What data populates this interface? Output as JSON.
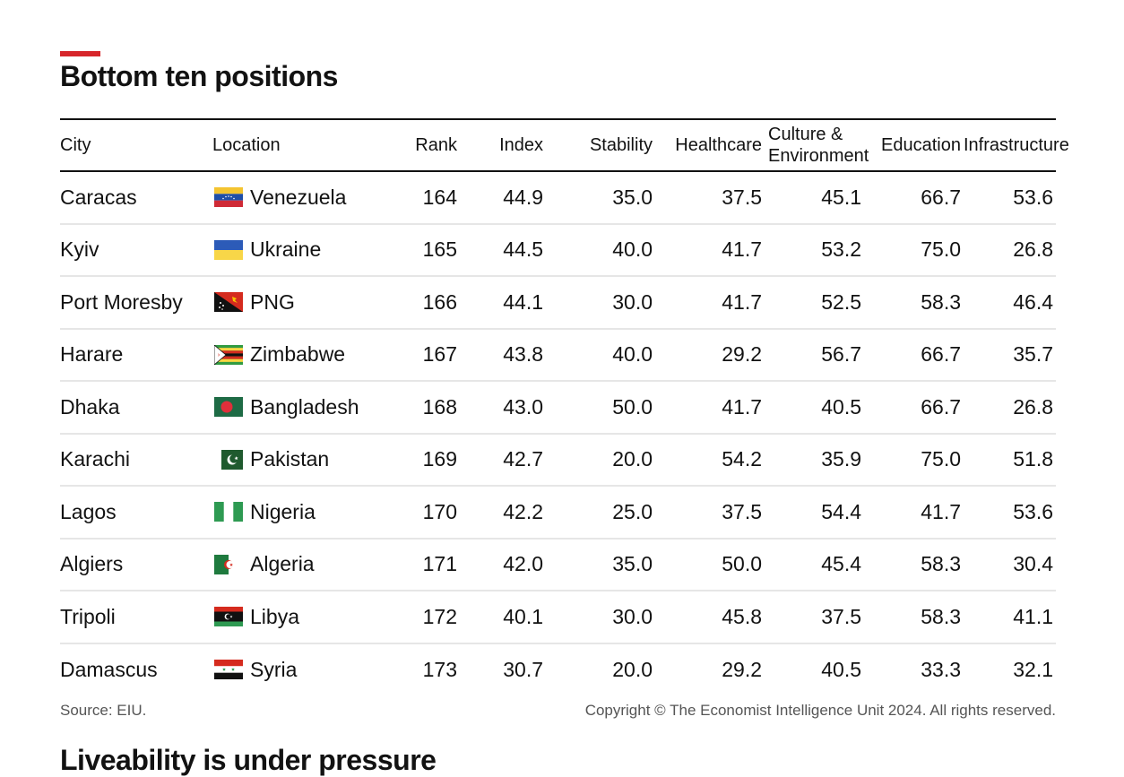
{
  "title": "Bottom ten positions",
  "next_section_title": "Liveability is under pressure",
  "source": "Source: EIU.",
  "copyright": "Copyright © The Economist Intelligence Unit 2024. All rights reserved.",
  "colors": {
    "accent": "#d7262b",
    "text": "#121212",
    "rule": "#e6e6e6"
  },
  "chart_data": {
    "type": "table",
    "columns": [
      "City",
      "Location",
      "Rank",
      "Index",
      "Stability",
      "Healthcare",
      "Culture & Environment",
      "Education",
      "Infrastructure"
    ],
    "column_labels": {
      "city": "City",
      "location": "Location",
      "rank": "Rank",
      "index": "Index",
      "stability": "Stability",
      "healthcare": "Healthcare",
      "culture_1": "Culture &",
      "culture_2": "Environment",
      "education": "Education",
      "infrastructure": "Infrastructure"
    },
    "rows": [
      {
        "city": "Caracas",
        "location": "Venezuela",
        "flag": "venezuela",
        "rank": "164",
        "index": "44.9",
        "stability": "35.0",
        "healthcare": "37.5",
        "culture": "45.1",
        "education": "66.7",
        "infrastructure": "53.6"
      },
      {
        "city": "Kyiv",
        "location": "Ukraine",
        "flag": "ukraine",
        "rank": "165",
        "index": "44.5",
        "stability": "40.0",
        "healthcare": "41.7",
        "culture": "53.2",
        "education": "75.0",
        "infrastructure": "26.8"
      },
      {
        "city": "Port Moresby",
        "location": "PNG",
        "flag": "png",
        "rank": "166",
        "index": "44.1",
        "stability": "30.0",
        "healthcare": "41.7",
        "culture": "52.5",
        "education": "58.3",
        "infrastructure": "46.4"
      },
      {
        "city": "Harare",
        "location": "Zimbabwe",
        "flag": "zimbabwe",
        "rank": "167",
        "index": "43.8",
        "stability": "40.0",
        "healthcare": "29.2",
        "culture": "56.7",
        "education": "66.7",
        "infrastructure": "35.7"
      },
      {
        "city": "Dhaka",
        "location": "Bangladesh",
        "flag": "bangladesh",
        "rank": "168",
        "index": "43.0",
        "stability": "50.0",
        "healthcare": "41.7",
        "culture": "40.5",
        "education": "66.7",
        "infrastructure": "26.8"
      },
      {
        "city": "Karachi",
        "location": "Pakistan",
        "flag": "pakistan",
        "rank": "169",
        "index": "42.7",
        "stability": "20.0",
        "healthcare": "54.2",
        "culture": "35.9",
        "education": "75.0",
        "infrastructure": "51.8"
      },
      {
        "city": "Lagos",
        "location": "Nigeria",
        "flag": "nigeria",
        "rank": "170",
        "index": "42.2",
        "stability": "25.0",
        "healthcare": "37.5",
        "culture": "54.4",
        "education": "41.7",
        "infrastructure": "53.6"
      },
      {
        "city": "Algiers",
        "location": "Algeria",
        "flag": "algeria",
        "rank": "171",
        "index": "42.0",
        "stability": "35.0",
        "healthcare": "50.0",
        "culture": "45.4",
        "education": "58.3",
        "infrastructure": "30.4"
      },
      {
        "city": "Tripoli",
        "location": "Libya",
        "flag": "libya",
        "rank": "172",
        "index": "40.1",
        "stability": "30.0",
        "healthcare": "45.8",
        "culture": "37.5",
        "education": "58.3",
        "infrastructure": "41.1"
      },
      {
        "city": "Damascus",
        "location": "Syria",
        "flag": "syria",
        "rank": "173",
        "index": "30.7",
        "stability": "20.0",
        "healthcare": "29.2",
        "culture": "40.5",
        "education": "33.3",
        "infrastructure": "32.1"
      }
    ]
  }
}
